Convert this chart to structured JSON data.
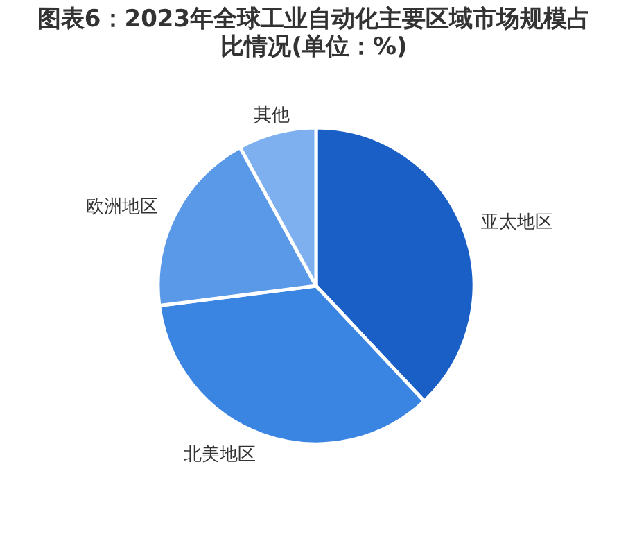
{
  "chart_data": {
    "type": "pie",
    "title": "图表6：2023年全球工业自动化主要区域市场规模占比情况(单位：%)",
    "categories": [
      "亚太地区",
      "北美地区",
      "欧洲地区",
      "其他"
    ],
    "values": [
      38,
      35,
      19,
      8
    ],
    "colors": [
      "#1a5fc6",
      "#3a84e2",
      "#5a98e8",
      "#7eb0f0"
    ]
  }
}
